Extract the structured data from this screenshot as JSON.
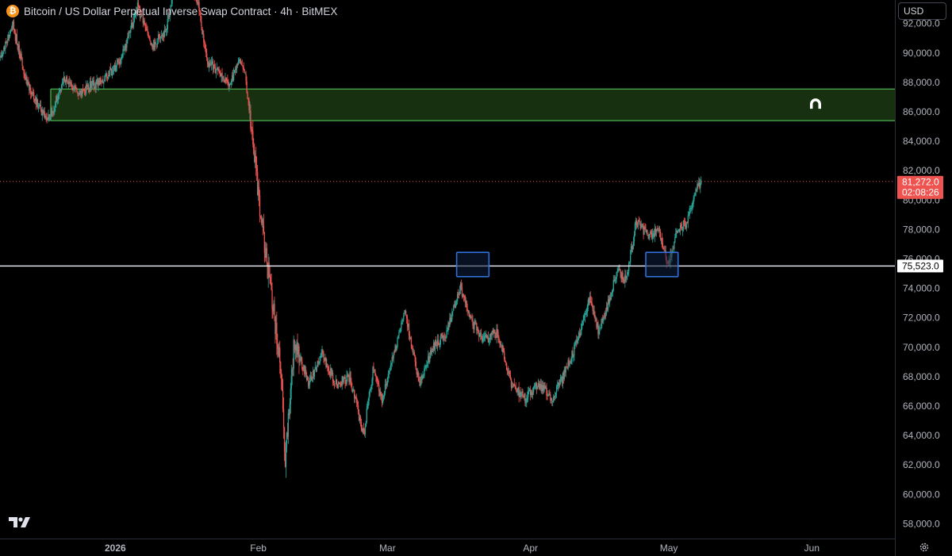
{
  "header": {
    "coin_icon": "bitcoin-icon",
    "coin_glyph": "₿",
    "title": "Bitcoin / US Dollar Perpetual Inverse Swap Contract · 4h · BitMEX"
  },
  "currency_selector": {
    "label": "USD"
  },
  "footer": {
    "settings_icon": "gear-icon",
    "logo_icon": "tradingview-logo-icon"
  },
  "colors": {
    "up": "#26a69a",
    "down": "#ef5350",
    "zone_fill": "#17300f",
    "zone_border": "#4caf50",
    "box_border": "#2f6fd6",
    "box_fill": "#0e1f3d",
    "level_line": "#e0e3eb",
    "current_line": "#ef5350"
  },
  "chart_data": {
    "type": "candlestick",
    "symbol": "Bitcoin / US Dollar Perpetual Inverse Swap Contract",
    "interval": "4h",
    "exchange": "BitMEX",
    "currency": "USD",
    "x_ticks": [
      {
        "label": "2026",
        "date": "2026-01-01",
        "bold": true
      },
      {
        "label": "Feb",
        "date": "2026-02-01"
      },
      {
        "label": "Mar",
        "date": "2026-03-01"
      },
      {
        "label": "Apr",
        "date": "2026-04-01"
      },
      {
        "label": "May",
        "date": "2026-05-01"
      },
      {
        "label": "Jun",
        "date": "2026-06-01"
      }
    ],
    "x_range": [
      "2025-12-07",
      "2026-06-19"
    ],
    "y_range": [
      57000,
      93600
    ],
    "y_ticks": [
      58000,
      60000,
      62000,
      64000,
      66000,
      68000,
      70000,
      72000,
      74000,
      76000,
      78000,
      80000,
      82000,
      84000,
      86000,
      88000,
      90000,
      92000
    ],
    "y_tick_labels": [
      "58,000.0",
      "60,000.0",
      "62,000.0",
      "64,000.0",
      "66,000.0",
      "68,000.0",
      "70,000.0",
      "72,000.0",
      "74,000.0",
      "76,000.0",
      "78,000.0",
      "80,000.0",
      "82,000.0",
      "84,000.0",
      "86,000.0",
      "88,000.0",
      "90,000.0",
      "92,000.0"
    ],
    "price_path": [
      [
        "2025-12-07",
        89500
      ],
      [
        "2025-12-10",
        91800
      ],
      [
        "2025-12-13",
        88000
      ],
      [
        "2025-12-16",
        86000
      ],
      [
        "2025-12-18",
        85500
      ],
      [
        "2025-12-21",
        88300
      ],
      [
        "2025-12-24",
        87200
      ],
      [
        "2025-12-27",
        87800
      ],
      [
        "2025-12-30",
        88200
      ],
      [
        "2026-01-03",
        90000
      ],
      [
        "2026-01-06",
        93200
      ],
      [
        "2026-01-09",
        90400
      ],
      [
        "2026-01-12",
        91500
      ],
      [
        "2026-01-15",
        96000
      ],
      [
        "2026-01-19",
        93500
      ],
      [
        "2026-01-21",
        89500
      ],
      [
        "2026-01-24",
        88500
      ],
      [
        "2026-01-26",
        88000
      ],
      [
        "2026-01-28",
        89500
      ],
      [
        "2026-01-29",
        89200
      ],
      [
        "2026-01-31",
        84000
      ],
      [
        "2026-02-02",
        78000
      ],
      [
        "2026-02-04",
        73500
      ],
      [
        "2026-02-06",
        68500
      ],
      [
        "2026-02-07",
        62500
      ],
      [
        "2026-02-09",
        70500
      ],
      [
        "2026-02-12",
        67500
      ],
      [
        "2026-02-15",
        69500
      ],
      [
        "2026-02-18",
        67500
      ],
      [
        "2026-02-21",
        68000
      ],
      [
        "2026-02-24",
        64000
      ],
      [
        "2026-02-26",
        68500
      ],
      [
        "2026-02-28",
        66500
      ],
      [
        "2026-03-03",
        70000
      ],
      [
        "2026-03-05",
        72500
      ],
      [
        "2026-03-08",
        67500
      ],
      [
        "2026-03-11",
        70000
      ],
      [
        "2026-03-14",
        71000
      ],
      [
        "2026-03-17",
        74000
      ],
      [
        "2026-03-19",
        72000
      ],
      [
        "2026-03-22",
        70500
      ],
      [
        "2026-03-25",
        71000
      ],
      [
        "2026-03-28",
        67500
      ],
      [
        "2026-03-31",
        66500
      ],
      [
        "2026-04-03",
        67500
      ],
      [
        "2026-04-06",
        66500
      ],
      [
        "2026-04-09",
        68500
      ],
      [
        "2026-04-12",
        71000
      ],
      [
        "2026-04-14",
        73500
      ],
      [
        "2026-04-16",
        71000
      ],
      [
        "2026-04-18",
        73000
      ],
      [
        "2026-04-20",
        75200
      ],
      [
        "2026-04-22",
        74500
      ],
      [
        "2026-04-24",
        78500
      ],
      [
        "2026-04-27",
        77500
      ],
      [
        "2026-04-29",
        78000
      ],
      [
        "2026-05-01",
        75500
      ],
      [
        "2026-05-03",
        78000
      ],
      [
        "2026-05-05",
        78500
      ],
      [
        "2026-05-07",
        80500
      ],
      [
        "2026-05-08",
        81272
      ]
    ],
    "annotations": {
      "resistance_zone": {
        "low": 85400,
        "high": 87550,
        "from": "2025-12-18",
        "to": "2026-06-19"
      },
      "horizontal_level": {
        "price": 75523,
        "label": "75,523.0"
      },
      "marked_boxes": [
        {
          "from": "2026-03-16",
          "to": "2026-03-23",
          "low": 74800,
          "high": 76450
        },
        {
          "from": "2026-04-26",
          "to": "2026-05-03",
          "low": 74800,
          "high": 76450
        }
      ],
      "zone_icon": "magnet-icon"
    },
    "last_price": {
      "price": 81272,
      "label": "81,272.0",
      "countdown": "02:08:26"
    },
    "grid": false,
    "legend": "none"
  }
}
